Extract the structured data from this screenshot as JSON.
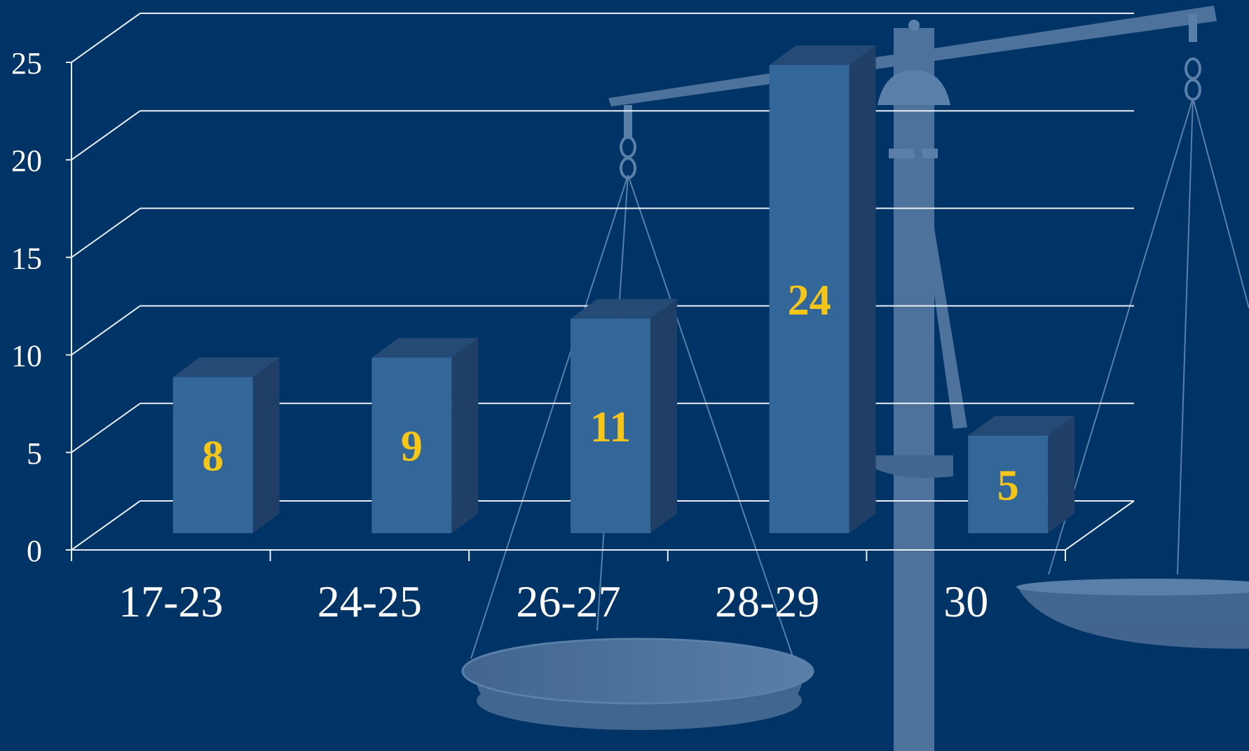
{
  "colors": {
    "background": "#003366",
    "bar_front": "#336699",
    "bar_side": "#1f3f66",
    "bar_top": "#244a75",
    "data_label": "#f5c518",
    "grid": "#e8eef5",
    "scale_art": "#5b7ea6"
  },
  "decor": {
    "background_art": "scales-of-justice-icon"
  },
  "chart_data": {
    "type": "bar",
    "style": "3d-columns",
    "categories": [
      "17-23",
      "24-25",
      "26-27",
      "28-29",
      "30"
    ],
    "values": [
      8,
      9,
      11,
      24,
      5
    ],
    "data_labels": [
      "8",
      "9",
      "11",
      "24",
      "5"
    ],
    "yticks": [
      "0",
      "5",
      "10",
      "15",
      "20",
      "25"
    ],
    "ylim": [
      0,
      25
    ],
    "grid": true,
    "legend": "none"
  }
}
